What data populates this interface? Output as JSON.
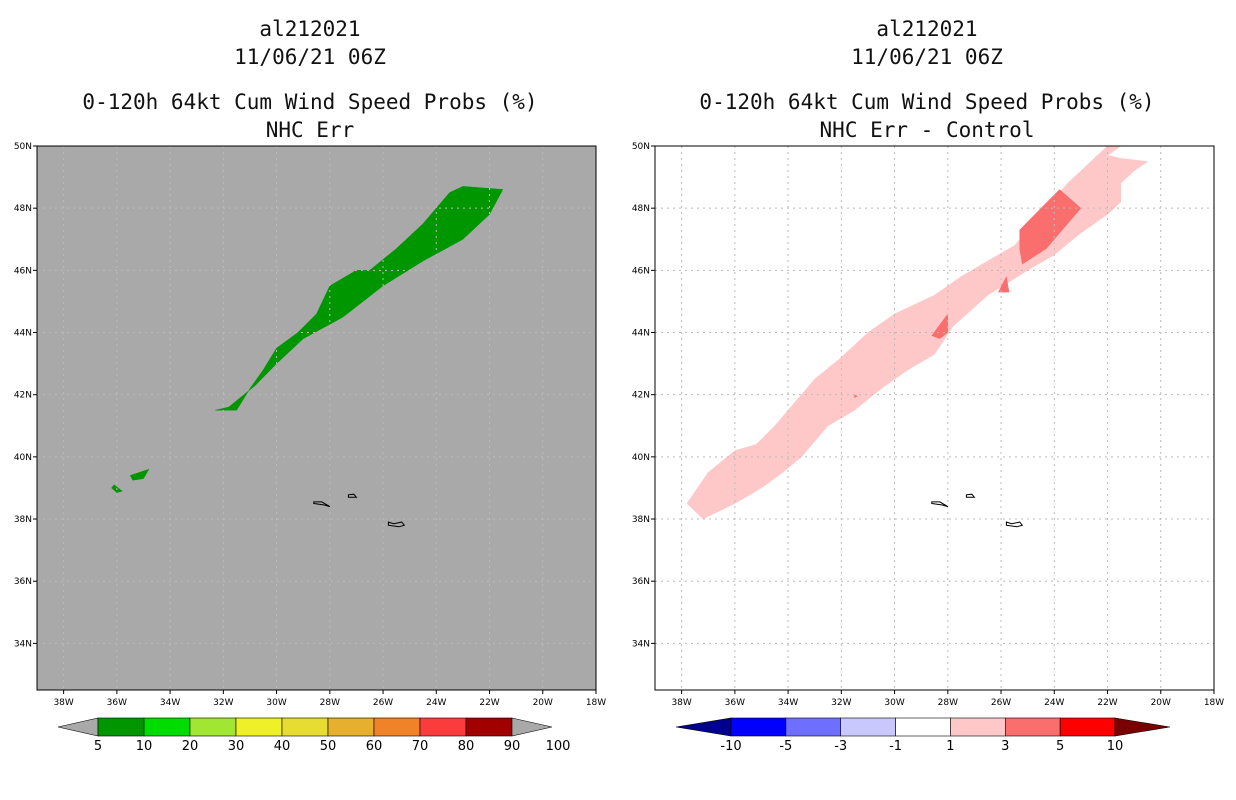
{
  "chart_data": [
    {
      "type": "map-contour",
      "title_lines": [
        "al212021",
        "11/06/21 06Z",
        "0-120h 64kt Cum Wind Speed Probs (%)",
        "NHC Err"
      ],
      "x_ticks": [
        "38W",
        "36W",
        "34W",
        "32W",
        "30W",
        "28W",
        "26W",
        "24W",
        "22W",
        "20W",
        "18W"
      ],
      "y_ticks": [
        "50N",
        "48N",
        "46N",
        "44N",
        "42N",
        "40N",
        "38N",
        "36N",
        "34N"
      ],
      "lon_range": [
        -39,
        -18
      ],
      "lat_range": [
        32.5,
        50
      ],
      "background_color": "#a9a9a9",
      "colorbar": {
        "labels": [
          "5",
          "10",
          "20",
          "30",
          "40",
          "50",
          "60",
          "70",
          "80",
          "90",
          "100"
        ],
        "colors": [
          "#009600",
          "#00dc00",
          "#a0e632",
          "#f0f028",
          "#e6dc32",
          "#e6af2d",
          "#f08228",
          "#fa3c3c",
          "#a00000",
          "#8c00dc",
          "#a9a9a9"
        ]
      },
      "regions": [
        {
          "name": "main-band",
          "color": "#009600",
          "level": "5-10",
          "points": [
            [
              -31.5,
              41.5
            ],
            [
              -31,
              42.2
            ],
            [
              -30.5,
              42.8
            ],
            [
              -30,
              43.5
            ],
            [
              -29.2,
              44.0
            ],
            [
              -28.5,
              44.6
            ],
            [
              -28,
              45.5
            ],
            [
              -27,
              46.0
            ],
            [
              -26.5,
              46.0
            ],
            [
              -25.5,
              46.7
            ],
            [
              -24.5,
              47.5
            ],
            [
              -23.5,
              48.5
            ],
            [
              -23,
              48.7
            ],
            [
              -21.5,
              48.6
            ],
            [
              -22,
              47.8
            ],
            [
              -23,
              47.0
            ],
            [
              -24.5,
              46.3
            ],
            [
              -26,
              45.5
            ],
            [
              -27.5,
              44.5
            ],
            [
              -29,
              43.8
            ],
            [
              -30,
              43.0
            ],
            [
              -30.8,
              42.3
            ],
            [
              -31.8,
              41.6
            ],
            [
              -32.3,
              41.5
            ]
          ]
        },
        {
          "name": "small-blob-a",
          "color": "#009600",
          "level": "5-10",
          "points": [
            [
              -35.5,
              39.4
            ],
            [
              -34.8,
              39.6
            ],
            [
              -35,
              39.3
            ],
            [
              -35.4,
              39.25
            ]
          ]
        },
        {
          "name": "small-blob-b",
          "color": "#009600",
          "level": "5-10",
          "points": [
            [
              -36.1,
              39.1
            ],
            [
              -35.8,
              38.9
            ],
            [
              -36.0,
              38.85
            ],
            [
              -36.2,
              39.0
            ]
          ]
        }
      ]
    },
    {
      "type": "map-contour",
      "title_lines": [
        "al212021",
        "11/06/21 06Z",
        "0-120h 64kt Cum Wind Speed Probs (%)",
        "NHC Err - Control"
      ],
      "x_ticks": [
        "38W",
        "36W",
        "34W",
        "32W",
        "30W",
        "28W",
        "26W",
        "24W",
        "22W",
        "20W",
        "18W"
      ],
      "y_ticks": [
        "50N",
        "48N",
        "46N",
        "44N",
        "42N",
        "40N",
        "38N",
        "36N",
        "34N"
      ],
      "lon_range": [
        -39,
        -18
      ],
      "lat_range": [
        32.5,
        50
      ],
      "background_color": "#ffffff",
      "colorbar": {
        "labels": [
          "-10",
          "-5",
          "-3",
          "-1",
          "1",
          "3",
          "5",
          "10"
        ],
        "colors": [
          "#00008c",
          "#0000ff",
          "#6e6eff",
          "#c8c8ff",
          "#ffffff",
          "#ffc8c8",
          "#fa6e6e",
          "#ff0000",
          "#780000"
        ]
      },
      "regions": [
        {
          "name": "positive-1-3",
          "color": "#ffc8c8",
          "level": "1-3",
          "points": [
            [
              -37.8,
              38.5
            ],
            [
              -37,
              39.5
            ],
            [
              -36,
              40.2
            ],
            [
              -35.2,
              40.4
            ],
            [
              -34.5,
              41.0
            ],
            [
              -33.7,
              41.8
            ],
            [
              -33,
              42.5
            ],
            [
              -32,
              43.2
            ],
            [
              -31,
              44
            ],
            [
              -30,
              44.6
            ],
            [
              -28.5,
              45.2
            ],
            [
              -27.5,
              45.8
            ],
            [
              -26.5,
              46.3
            ],
            [
              -25.5,
              46.8
            ],
            [
              -24.5,
              47.8
            ],
            [
              -23.5,
              48.8
            ],
            [
              -22.5,
              49.6
            ],
            [
              -22,
              50
            ],
            [
              -21.5,
              50
            ],
            [
              -22,
              49.7
            ],
            [
              -21.5,
              49.6
            ],
            [
              -20.5,
              49.5
            ],
            [
              -21,
              49.2
            ],
            [
              -21.5,
              48.8
            ],
            [
              -21.5,
              48.2
            ],
            [
              -22,
              47.8
            ],
            [
              -23,
              47.2
            ],
            [
              -24,
              46.5
            ],
            [
              -25,
              46
            ],
            [
              -26.5,
              45.2
            ],
            [
              -27.8,
              44.2
            ],
            [
              -28.5,
              43.3
            ],
            [
              -29.5,
              42.8
            ],
            [
              -30.5,
              42.2
            ],
            [
              -31.5,
              41.5
            ],
            [
              -32.5,
              41
            ],
            [
              -33.5,
              40
            ],
            [
              -34.2,
              39.5
            ],
            [
              -35,
              39
            ],
            [
              -36,
              38.5
            ],
            [
              -37.2,
              38
            ]
          ]
        },
        {
          "name": "positive-3-5-a",
          "color": "#fa6e6e",
          "level": "3-5",
          "points": [
            [
              -25.2,
              46.2
            ],
            [
              -24.3,
              46.7
            ],
            [
              -23.5,
              47.5
            ],
            [
              -23,
              48.0
            ],
            [
              -23.8,
              48.6
            ],
            [
              -24.5,
              48
            ],
            [
              -25.3,
              47.3
            ],
            [
              -25.3,
              46.7
            ]
          ]
        },
        {
          "name": "positive-3-5-b",
          "color": "#fa6e6e",
          "level": "3-5",
          "points": [
            [
              -28.6,
              43.9
            ],
            [
              -28,
              44.6
            ],
            [
              -28,
              44.0
            ],
            [
              -28.3,
              43.8
            ]
          ]
        },
        {
          "name": "positive-3-5-c",
          "color": "#fa6e6e",
          "level": "3-5",
          "points": [
            [
              -26.1,
              45.3
            ],
            [
              -25.7,
              45.3
            ],
            [
              -25.8,
              45.8
            ]
          ]
        },
        {
          "name": "positive-3-5-d",
          "color": "#fa6e6e",
          "level": "3-5",
          "points": [
            [
              -31.5,
              42.0
            ],
            [
              -31.4,
              41.95
            ],
            [
              -31.5,
              41.9
            ]
          ]
        }
      ]
    }
  ]
}
